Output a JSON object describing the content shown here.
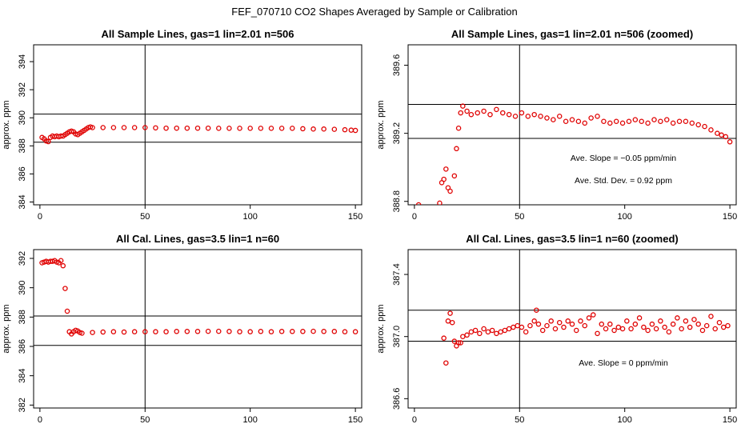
{
  "suptitle": "FEF_070710  CO2 Shapes Averaged by Sample or Calibration",
  "colors": {
    "points": "#e00000",
    "lines": "#000000"
  },
  "chart_data": [
    {
      "type": "scatter",
      "title": "All Sample Lines, gas=1 lin=2.01 n=506",
      "xlabel": "",
      "ylabel": "approx. ppm",
      "xlim": [
        -3,
        153
      ],
      "ylim": [
        383.8,
        395.2
      ],
      "x_ticks": [
        0,
        50,
        100,
        150
      ],
      "y_ticks": [
        384,
        386,
        388,
        390,
        392,
        394
      ],
      "y_tick_labels": [
        "384",
        "386",
        "388",
        "390",
        "392",
        "394"
      ],
      "vline": 50,
      "hlines": [
        388.26,
        390.26
      ],
      "annotations": [],
      "points": [
        [
          1,
          388.6
        ],
        [
          2,
          388.5
        ],
        [
          3,
          388.35
        ],
        [
          4,
          388.3
        ],
        [
          5,
          388.6
        ],
        [
          6,
          388.7
        ],
        [
          7,
          388.65
        ],
        [
          8,
          388.7
        ],
        [
          9,
          388.65
        ],
        [
          10,
          388.7
        ],
        [
          11,
          388.7
        ],
        [
          12,
          388.8
        ],
        [
          13,
          388.9
        ],
        [
          14,
          389.0
        ],
        [
          15,
          389.05
        ],
        [
          16,
          389.0
        ],
        [
          17,
          388.85
        ],
        [
          18,
          388.8
        ],
        [
          19,
          388.9
        ],
        [
          20,
          389.0
        ],
        [
          21,
          389.1
        ],
        [
          22,
          389.2
        ],
        [
          23,
          389.3
        ],
        [
          24,
          389.35
        ],
        [
          25,
          389.3
        ],
        [
          30,
          389.3
        ],
        [
          35,
          389.3
        ],
        [
          40,
          389.3
        ],
        [
          45,
          389.3
        ],
        [
          50,
          389.3
        ],
        [
          55,
          389.28
        ],
        [
          60,
          389.26
        ],
        [
          65,
          389.26
        ],
        [
          70,
          389.26
        ],
        [
          75,
          389.26
        ],
        [
          80,
          389.26
        ],
        [
          85,
          389.25
        ],
        [
          90,
          389.25
        ],
        [
          95,
          389.25
        ],
        [
          100,
          389.25
        ],
        [
          105,
          389.25
        ],
        [
          110,
          389.25
        ],
        [
          115,
          389.25
        ],
        [
          120,
          389.25
        ],
        [
          125,
          389.22
        ],
        [
          130,
          389.2
        ],
        [
          135,
          389.2
        ],
        [
          140,
          389.18
        ],
        [
          145,
          389.15
        ],
        [
          148,
          389.12
        ],
        [
          150,
          389.1
        ]
      ]
    },
    {
      "type": "scatter",
      "title": "All Sample Lines, gas=1 lin=2.01 n=506 (zoomed)",
      "xlabel": "",
      "ylabel": "approx. ppm",
      "xlim": [
        -3,
        153
      ],
      "ylim": [
        388.78,
        389.72
      ],
      "x_ticks": [
        0,
        50,
        100,
        150
      ],
      "y_ticks": [
        388.8,
        389.2,
        389.6
      ],
      "y_tick_labels": [
        "388.8",
        "389.2",
        "389.6"
      ],
      "vline": 50,
      "hlines": [
        389.17,
        389.37
      ],
      "annotations": [
        "Ave. Slope =  −0.05  ppm/min",
        "Ave. Std. Dev. =  0.92  ppm"
      ],
      "points": [
        [
          2,
          388.78
        ],
        [
          12,
          388.79
        ],
        [
          13,
          388.91
        ],
        [
          14,
          388.93
        ],
        [
          15,
          388.99
        ],
        [
          16,
          388.88
        ],
        [
          17,
          388.86
        ],
        [
          19,
          388.95
        ],
        [
          20,
          389.11
        ],
        [
          21,
          389.23
        ],
        [
          22,
          389.32
        ],
        [
          23,
          389.36
        ],
        [
          25,
          389.33
        ],
        [
          27,
          389.31
        ],
        [
          30,
          389.32
        ],
        [
          33,
          389.33
        ],
        [
          36,
          389.31
        ],
        [
          39,
          389.34
        ],
        [
          42,
          389.32
        ],
        [
          45,
          389.31
        ],
        [
          48,
          389.3
        ],
        [
          51,
          389.32
        ],
        [
          54,
          389.3
        ],
        [
          57,
          389.31
        ],
        [
          60,
          389.3
        ],
        [
          63,
          389.29
        ],
        [
          66,
          389.28
        ],
        [
          69,
          389.3
        ],
        [
          72,
          389.27
        ],
        [
          75,
          389.28
        ],
        [
          78,
          389.27
        ],
        [
          81,
          389.26
        ],
        [
          84,
          389.29
        ],
        [
          87,
          389.3
        ],
        [
          90,
          389.27
        ],
        [
          93,
          389.26
        ],
        [
          96,
          389.27
        ],
        [
          99,
          389.26
        ],
        [
          102,
          389.27
        ],
        [
          105,
          389.28
        ],
        [
          108,
          389.27
        ],
        [
          111,
          389.26
        ],
        [
          114,
          389.28
        ],
        [
          117,
          389.27
        ],
        [
          120,
          389.28
        ],
        [
          123,
          389.26
        ],
        [
          126,
          389.27
        ],
        [
          129,
          389.27
        ],
        [
          132,
          389.26
        ],
        [
          135,
          389.25
        ],
        [
          138,
          389.24
        ],
        [
          141,
          389.22
        ],
        [
          144,
          389.2
        ],
        [
          146,
          389.19
        ],
        [
          148,
          389.18
        ],
        [
          150,
          389.15
        ]
      ]
    },
    {
      "type": "scatter",
      "title": "All Cal. Lines, gas=3.5 lin=1 n=60",
      "xlabel": "",
      "ylabel": "approx. ppm",
      "xlim": [
        -3,
        153
      ],
      "ylim": [
        381.8,
        392.6
      ],
      "x_ticks": [
        0,
        50,
        100,
        150
      ],
      "y_ticks": [
        382,
        384,
        386,
        388,
        390,
        392
      ],
      "y_tick_labels": [
        "382",
        "384",
        "386",
        "388",
        "390",
        "392"
      ],
      "vline": 50,
      "hlines": [
        386.07,
        388.07
      ],
      "annotations": [],
      "points": [
        [
          1,
          391.7
        ],
        [
          2,
          391.75
        ],
        [
          3,
          391.8
        ],
        [
          4,
          391.75
        ],
        [
          5,
          391.8
        ],
        [
          6,
          391.8
        ],
        [
          7,
          391.85
        ],
        [
          8,
          391.75
        ],
        [
          9,
          391.7
        ],
        [
          10,
          391.85
        ],
        [
          11,
          391.5
        ],
        [
          12,
          389.95
        ],
        [
          13,
          388.4
        ],
        [
          14,
          387.0
        ],
        [
          15,
          386.85
        ],
        [
          16,
          387.0
        ],
        [
          17,
          387.1
        ],
        [
          18,
          387.05
        ],
        [
          19,
          386.95
        ],
        [
          20,
          386.9
        ],
        [
          25,
          386.95
        ],
        [
          30,
          386.98
        ],
        [
          35,
          387.0
        ],
        [
          40,
          386.98
        ],
        [
          45,
          387.0
        ],
        [
          50,
          387.0
        ],
        [
          55,
          387.0
        ],
        [
          60,
          387.0
        ],
        [
          65,
          387.02
        ],
        [
          70,
          387.02
        ],
        [
          75,
          387.02
        ],
        [
          80,
          387.03
        ],
        [
          85,
          387.03
        ],
        [
          90,
          387.02
        ],
        [
          95,
          387.0
        ],
        [
          100,
          387.0
        ],
        [
          105,
          387.02
        ],
        [
          110,
          387.0
        ],
        [
          115,
          387.02
        ],
        [
          120,
          387.02
        ],
        [
          125,
          387.02
        ],
        [
          130,
          387.03
        ],
        [
          135,
          387.02
        ],
        [
          140,
          387.02
        ],
        [
          145,
          387.0
        ],
        [
          150,
          387.0
        ]
      ]
    },
    {
      "type": "scatter",
      "title": "All Cal. Lines, gas=3.5 lin=1 n=60 (zoomed)",
      "xlabel": "",
      "ylabel": "approx. ppm",
      "xlim": [
        -3,
        153
      ],
      "ylim": [
        386.54,
        387.56
      ],
      "x_ticks": [
        0,
        50,
        100,
        150
      ],
      "y_ticks": [
        386.6,
        387.0,
        387.4
      ],
      "y_tick_labels": [
        "386.6",
        "387.0",
        "387.4"
      ],
      "vline": 50,
      "hlines": [
        386.97,
        387.17
      ],
      "annotations": [
        "Ave. Slope =  0  ppm/min"
      ],
      "points": [
        [
          14,
          386.99
        ],
        [
          15,
          386.83
        ],
        [
          16,
          387.1
        ],
        [
          17,
          387.15
        ],
        [
          18,
          387.09
        ],
        [
          19,
          386.97
        ],
        [
          20,
          386.94
        ],
        [
          21,
          386.96
        ],
        [
          22,
          386.96
        ],
        [
          23,
          387.0
        ],
        [
          25,
          387.01
        ],
        [
          27,
          387.03
        ],
        [
          29,
          387.04
        ],
        [
          31,
          387.02
        ],
        [
          33,
          387.05
        ],
        [
          35,
          387.03
        ],
        [
          37,
          387.04
        ],
        [
          39,
          387.02
        ],
        [
          41,
          387.03
        ],
        [
          43,
          387.04
        ],
        [
          45,
          387.05
        ],
        [
          47,
          387.06
        ],
        [
          49,
          387.07
        ],
        [
          51,
          387.06
        ],
        [
          53,
          387.03
        ],
        [
          55,
          387.07
        ],
        [
          57,
          387.1
        ],
        [
          58,
          387.17
        ],
        [
          59,
          387.08
        ],
        [
          61,
          387.04
        ],
        [
          63,
          387.07
        ],
        [
          65,
          387.1
        ],
        [
          67,
          387.05
        ],
        [
          69,
          387.09
        ],
        [
          71,
          387.06
        ],
        [
          73,
          387.1
        ],
        [
          75,
          387.08
        ],
        [
          77,
          387.04
        ],
        [
          79,
          387.1
        ],
        [
          81,
          387.07
        ],
        [
          83,
          387.12
        ],
        [
          85,
          387.14
        ],
        [
          87,
          387.02
        ],
        [
          89,
          387.08
        ],
        [
          91,
          387.05
        ],
        [
          93,
          387.08
        ],
        [
          95,
          387.04
        ],
        [
          97,
          387.06
        ],
        [
          99,
          387.05
        ],
        [
          101,
          387.1
        ],
        [
          103,
          387.05
        ],
        [
          105,
          387.08
        ],
        [
          107,
          387.12
        ],
        [
          109,
          387.06
        ],
        [
          111,
          387.04
        ],
        [
          113,
          387.08
        ],
        [
          115,
          387.05
        ],
        [
          117,
          387.1
        ],
        [
          119,
          387.06
        ],
        [
          121,
          387.03
        ],
        [
          123,
          387.08
        ],
        [
          125,
          387.12
        ],
        [
          127,
          387.05
        ],
        [
          129,
          387.1
        ],
        [
          131,
          387.06
        ],
        [
          133,
          387.11
        ],
        [
          135,
          387.08
        ],
        [
          137,
          387.04
        ],
        [
          139,
          387.07
        ],
        [
          141,
          387.13
        ],
        [
          143,
          387.05
        ],
        [
          145,
          387.09
        ],
        [
          147,
          387.06
        ],
        [
          149,
          387.07
        ]
      ]
    }
  ]
}
